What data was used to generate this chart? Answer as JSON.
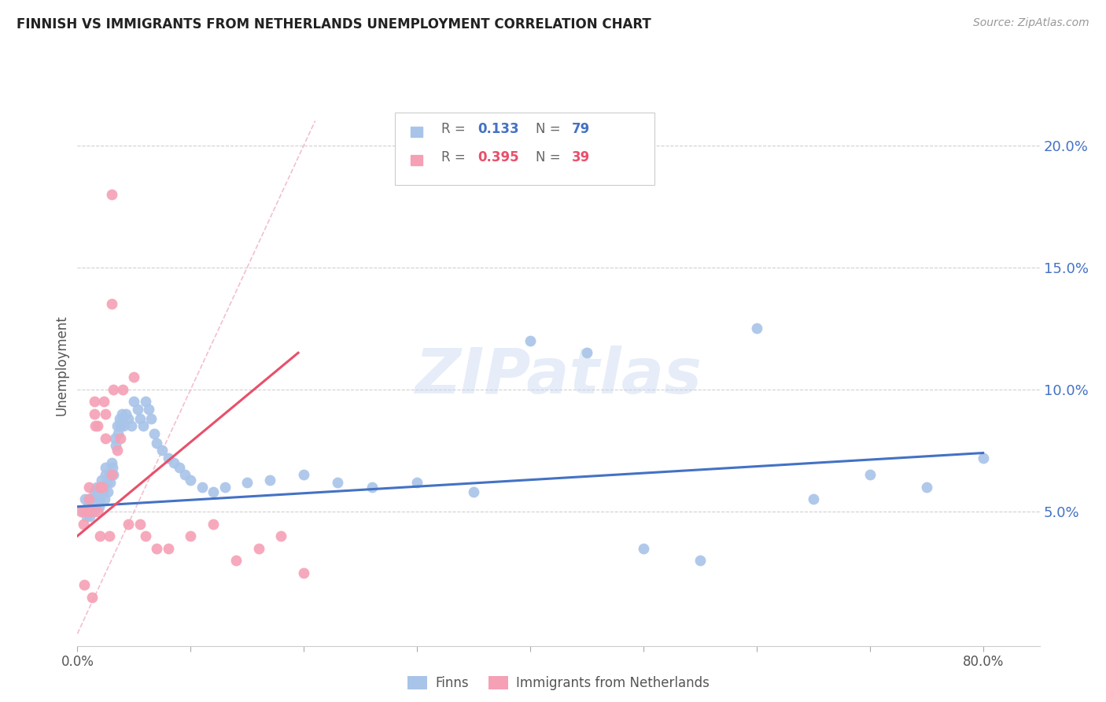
{
  "title": "FINNISH VS IMMIGRANTS FROM NETHERLANDS UNEMPLOYMENT CORRELATION CHART",
  "source": "Source: ZipAtlas.com",
  "ylabel": "Unemployment",
  "right_ytick_labels": [
    "5.0%",
    "10.0%",
    "15.0%",
    "20.0%"
  ],
  "right_ytick_values": [
    0.05,
    0.1,
    0.15,
    0.2
  ],
  "xlim": [
    0.0,
    0.85
  ],
  "ylim": [
    -0.005,
    0.225
  ],
  "finn_label": "Finns",
  "imm_label": "Immigrants from Netherlands",
  "watermark": "ZIPatlas",
  "title_color": "#222222",
  "source_color": "#999999",
  "finn_color": "#a8c4e8",
  "imm_color": "#f5a0b5",
  "finn_trend_color": "#4472c4",
  "imm_trend_color": "#e8506a",
  "right_label_color": "#4472c4",
  "bg_color": "#ffffff",
  "grid_color": "#d0d0d0",
  "diag_color": "#f0b0c0",
  "finn_x": [
    0.005,
    0.007,
    0.008,
    0.009,
    0.01,
    0.01,
    0.011,
    0.012,
    0.013,
    0.014,
    0.015,
    0.015,
    0.016,
    0.017,
    0.018,
    0.018,
    0.019,
    0.02,
    0.02,
    0.02,
    0.021,
    0.022,
    0.023,
    0.024,
    0.025,
    0.025,
    0.026,
    0.027,
    0.028,
    0.029,
    0.03,
    0.031,
    0.032,
    0.033,
    0.034,
    0.035,
    0.036,
    0.037,
    0.038,
    0.039,
    0.04,
    0.041,
    0.043,
    0.045,
    0.048,
    0.05,
    0.053,
    0.055,
    0.058,
    0.06,
    0.063,
    0.065,
    0.068,
    0.07,
    0.075,
    0.08,
    0.085,
    0.09,
    0.095,
    0.1,
    0.11,
    0.12,
    0.13,
    0.15,
    0.17,
    0.2,
    0.23,
    0.26,
    0.3,
    0.35,
    0.4,
    0.45,
    0.5,
    0.55,
    0.6,
    0.65,
    0.7,
    0.75,
    0.8
  ],
  "finn_y": [
    0.05,
    0.055,
    0.048,
    0.052,
    0.055,
    0.05,
    0.048,
    0.055,
    0.052,
    0.05,
    0.058,
    0.055,
    0.052,
    0.06,
    0.058,
    0.055,
    0.052,
    0.06,
    0.058,
    0.055,
    0.063,
    0.06,
    0.058,
    0.055,
    0.068,
    0.065,
    0.062,
    0.058,
    0.065,
    0.062,
    0.07,
    0.068,
    0.065,
    0.08,
    0.077,
    0.085,
    0.082,
    0.088,
    0.085,
    0.09,
    0.088,
    0.085,
    0.09,
    0.088,
    0.085,
    0.095,
    0.092,
    0.088,
    0.085,
    0.095,
    0.092,
    0.088,
    0.082,
    0.078,
    0.075,
    0.072,
    0.07,
    0.068,
    0.065,
    0.063,
    0.06,
    0.058,
    0.06,
    0.062,
    0.063,
    0.065,
    0.062,
    0.06,
    0.062,
    0.058,
    0.12,
    0.115,
    0.035,
    0.03,
    0.125,
    0.055,
    0.065,
    0.06,
    0.072
  ],
  "imm_x": [
    0.003,
    0.005,
    0.006,
    0.008,
    0.01,
    0.01,
    0.012,
    0.013,
    0.015,
    0.015,
    0.016,
    0.018,
    0.018,
    0.02,
    0.02,
    0.022,
    0.023,
    0.025,
    0.025,
    0.028,
    0.03,
    0.03,
    0.032,
    0.035,
    0.038,
    0.04,
    0.045,
    0.05,
    0.055,
    0.06,
    0.07,
    0.08,
    0.1,
    0.12,
    0.14,
    0.16,
    0.18,
    0.2,
    0.03
  ],
  "imm_y": [
    0.05,
    0.045,
    0.02,
    0.05,
    0.06,
    0.055,
    0.05,
    0.015,
    0.095,
    0.09,
    0.085,
    0.05,
    0.085,
    0.06,
    0.04,
    0.06,
    0.095,
    0.09,
    0.08,
    0.04,
    0.135,
    0.065,
    0.1,
    0.075,
    0.08,
    0.1,
    0.045,
    0.105,
    0.045,
    0.04,
    0.035,
    0.035,
    0.04,
    0.045,
    0.03,
    0.035,
    0.04,
    0.025,
    0.18
  ],
  "finn_trend": [
    0.0,
    0.8,
    0.052,
    0.074
  ],
  "imm_trend": [
    0.0,
    0.195,
    0.04,
    0.115
  ],
  "diag_line": [
    0.0,
    0.21,
    0.0,
    0.21
  ]
}
